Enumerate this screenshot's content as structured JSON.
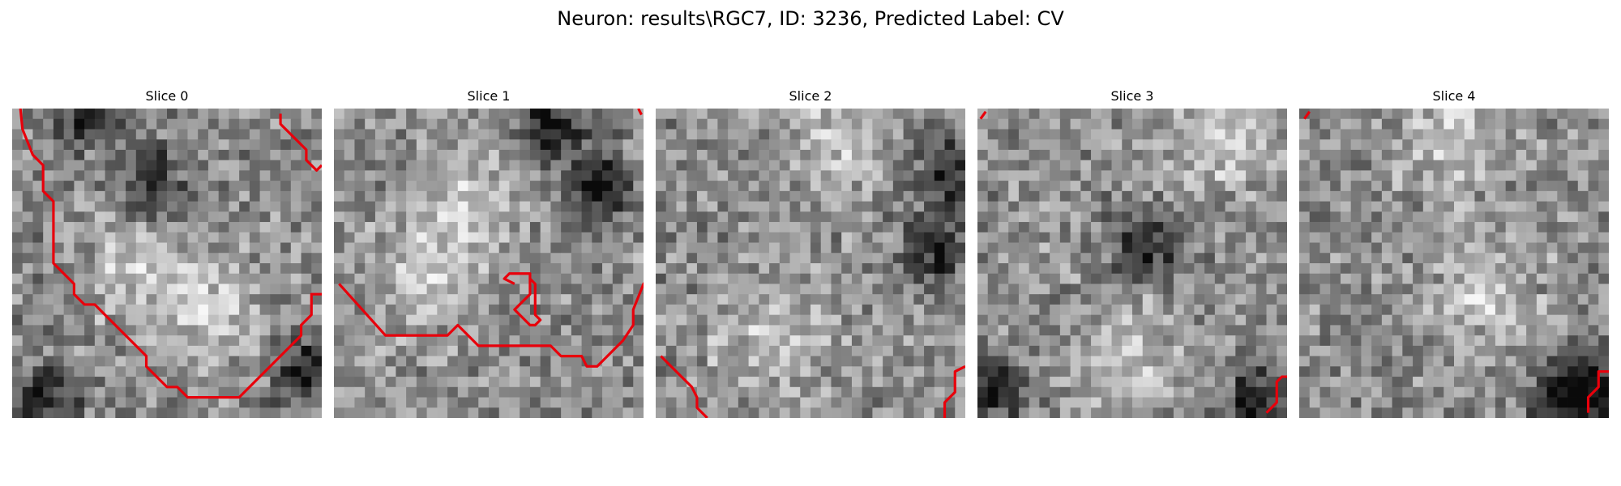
{
  "figure": {
    "title": "Neuron: results\\RGC7, ID: 3236, Predicted Label: CV",
    "colormap": "grayscale",
    "contour_color": "#e8000b",
    "panels": [
      {
        "label": "Slice 0",
        "seed": 11,
        "dark_spots": [
          [
            0.45,
            0.25
          ],
          [
            0.25,
            0.02
          ],
          [
            0.95,
            0.85
          ],
          [
            0.1,
            0.95
          ]
        ],
        "bright_spots": [
          [
            0.65,
            0.65
          ],
          [
            0.4,
            0.5
          ]
        ]
      },
      {
        "label": "Slice 1",
        "seed": 23,
        "dark_spots": [
          [
            0.7,
            0.05
          ],
          [
            0.85,
            0.25
          ]
        ],
        "bright_spots": [
          [
            0.45,
            0.3
          ],
          [
            0.3,
            0.55
          ]
        ]
      },
      {
        "label": "Slice 2",
        "seed": 37,
        "dark_spots": [
          [
            0.9,
            0.45
          ],
          [
            0.95,
            0.2
          ]
        ],
        "bright_spots": [
          [
            0.6,
            0.1
          ],
          [
            0.35,
            0.75
          ]
        ]
      },
      {
        "label": "Slice 3",
        "seed": 41,
        "dark_spots": [
          [
            0.55,
            0.45
          ],
          [
            0.05,
            0.9
          ],
          [
            0.9,
            0.95
          ]
        ],
        "bright_spots": [
          [
            0.8,
            0.1
          ],
          [
            0.5,
            0.8
          ]
        ]
      },
      {
        "label": "Slice 4",
        "seed": 53,
        "dark_spots": [
          [
            0.85,
            0.95
          ],
          [
            0.95,
            0.9
          ]
        ],
        "bright_spots": [
          [
            0.6,
            0.6
          ],
          [
            0.5,
            0.1
          ]
        ]
      }
    ]
  }
}
